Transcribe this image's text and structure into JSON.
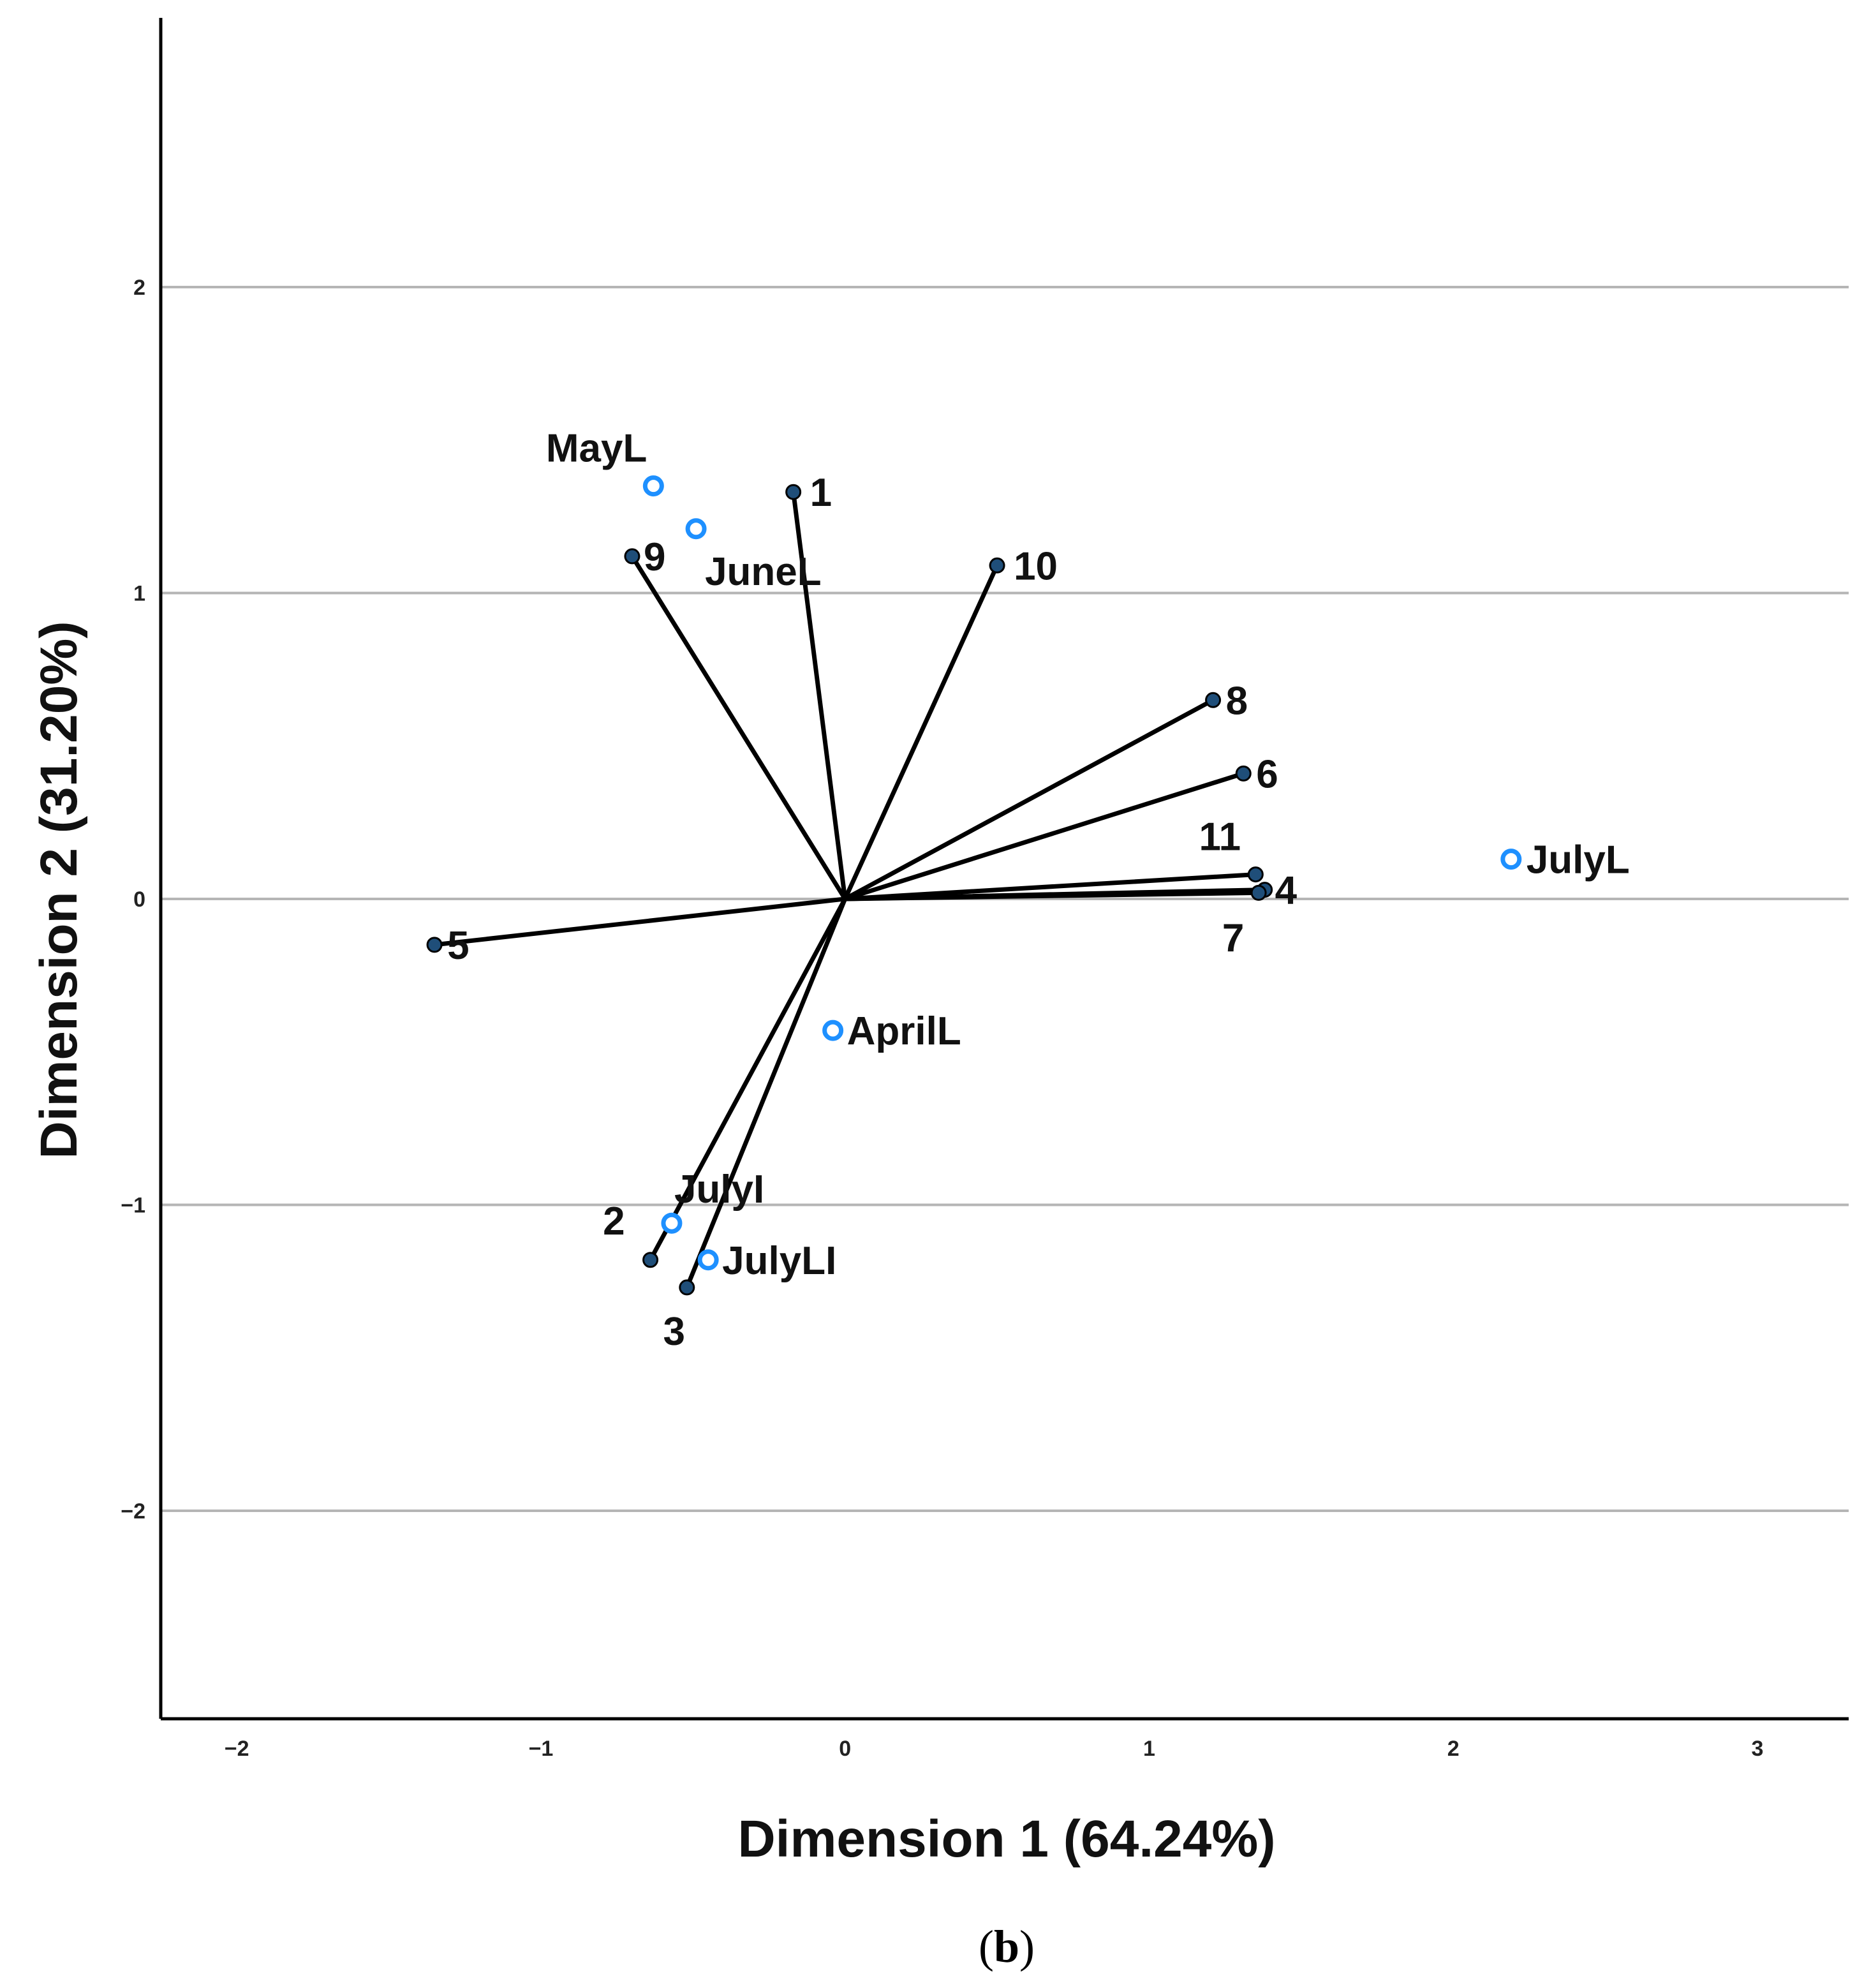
{
  "chart_data": {
    "type": "scatter",
    "subtype": "biplot",
    "xlabel": "Dimension 1 (64.24%)",
    "ylabel": "Dimension 2 (31.20%)",
    "xlim": [
      -2.25,
      3.3
    ],
    "ylim": [
      -2.68,
      2.88
    ],
    "x_ticks": [
      -2,
      -1,
      0,
      1,
      2,
      3
    ],
    "x_tick_labels": [
      "−2",
      "−1",
      "0",
      "1",
      "2",
      "3"
    ],
    "y_ticks": [
      -2,
      -1,
      0,
      1,
      2
    ],
    "y_tick_labels": [
      "−2",
      "−1",
      "0",
      "1",
      "2"
    ],
    "gridlines": "horizontal",
    "vectors": [
      {
        "label": "1",
        "x": -0.17,
        "y": 1.33
      },
      {
        "label": "2",
        "x": -0.64,
        "y": -1.18
      },
      {
        "label": "3",
        "x": -0.52,
        "y": -1.27
      },
      {
        "label": "4",
        "x": 1.38,
        "y": 0.03
      },
      {
        "label": "5",
        "x": -1.35,
        "y": -0.15
      },
      {
        "label": "6",
        "x": 1.31,
        "y": 0.41
      },
      {
        "label": "7",
        "x": 1.36,
        "y": 0.02
      },
      {
        "label": "8",
        "x": 1.21,
        "y": 0.65
      },
      {
        "label": "9",
        "x": -0.7,
        "y": 1.12
      },
      {
        "label": "10",
        "x": 0.5,
        "y": 1.09
      },
      {
        "label": "11",
        "x": 1.35,
        "y": 0.08
      }
    ],
    "points": [
      {
        "label": "MayL",
        "x": -0.63,
        "y": 1.35
      },
      {
        "label": "JuneL",
        "x": -0.49,
        "y": 1.21
      },
      {
        "label": "JulyL",
        "x": 2.19,
        "y": 0.13
      },
      {
        "label": "AprilL",
        "x": -0.04,
        "y": -0.43
      },
      {
        "label": "JulyI",
        "x": -0.57,
        "y": -1.06
      },
      {
        "label": "JulyLI",
        "x": -0.45,
        "y": -1.18
      }
    ],
    "colors": {
      "vector": "#000000",
      "vector_point": "#1f4e79",
      "category_point": "#1e90ff",
      "grid": "#b5b5b5",
      "axis": "#000000"
    }
  },
  "caption": "(b)"
}
